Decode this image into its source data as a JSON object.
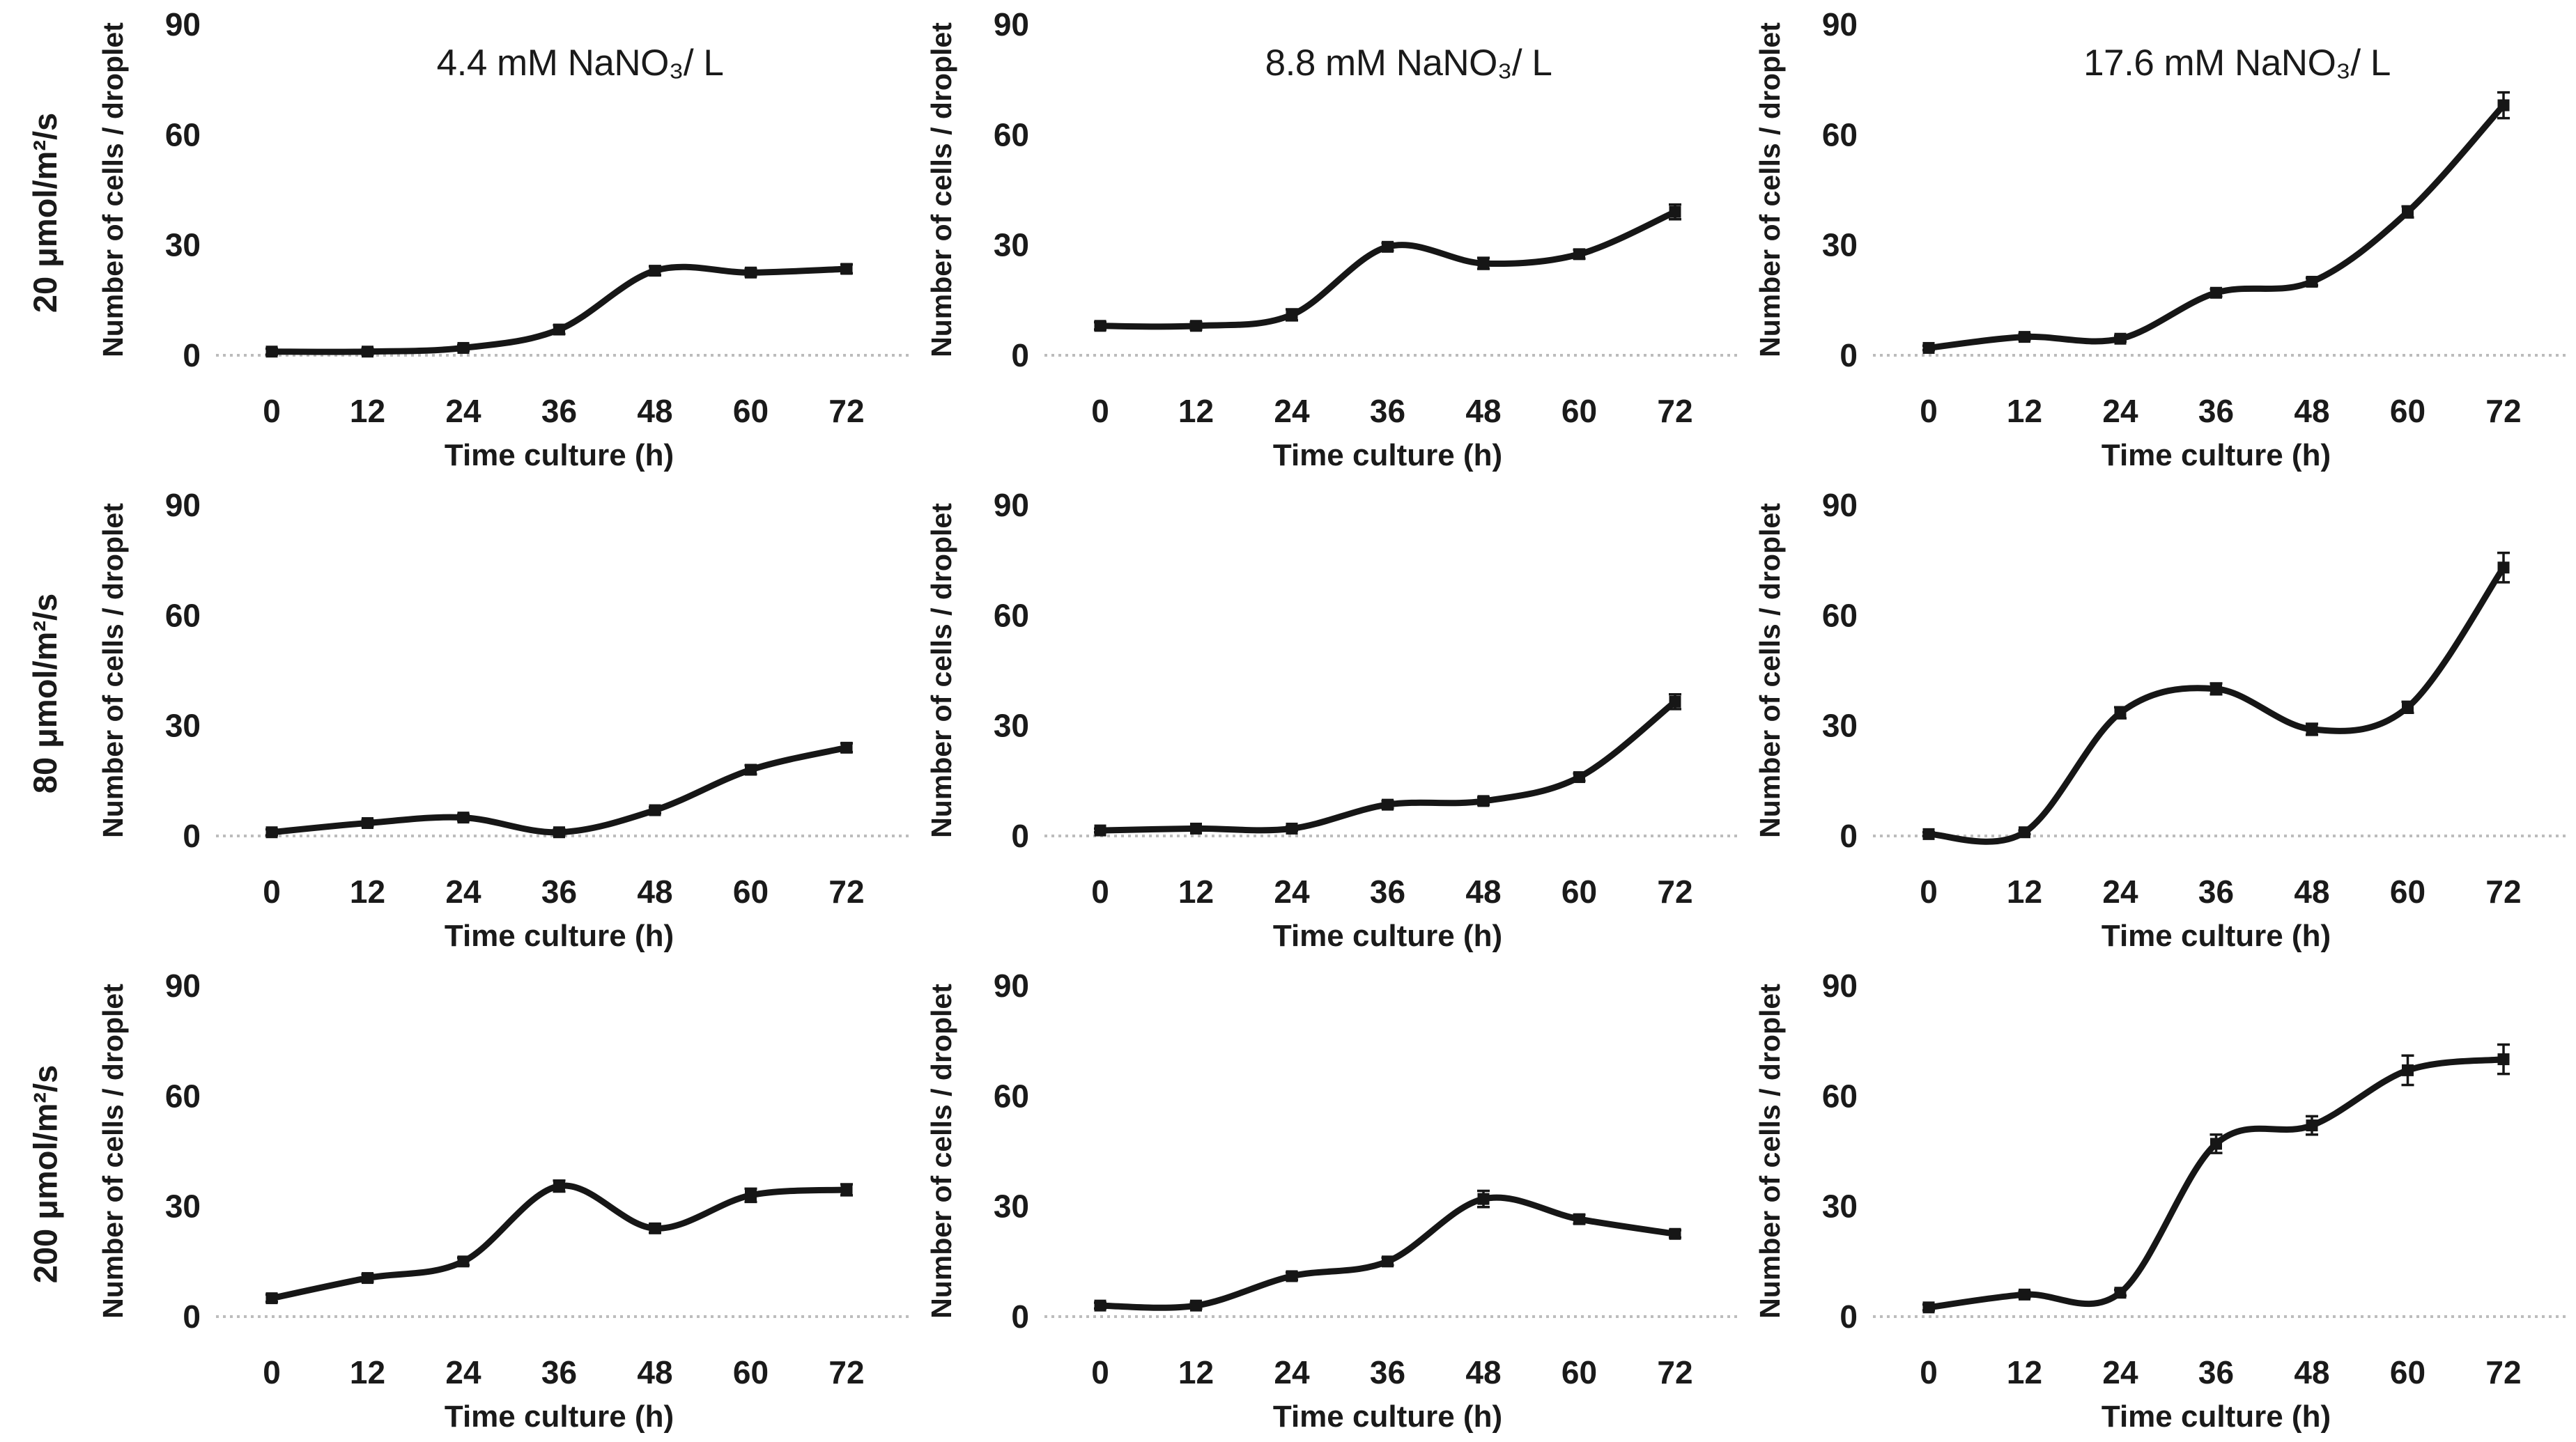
{
  "figure": {
    "background": "#ffffff",
    "text_color": "#1a1a1a",
    "line_color": "#161616",
    "baseline_color": "#bcbcbc",
    "row_labels": [
      "20 μmol/m²/s",
      "80 μmol/m²/s",
      "200 μmol/m²/s"
    ],
    "col_titles": [
      "4.4 mM NaNO₃/ L",
      "8.8 mM NaNO₃/ L",
      "17.6 mM NaNO₃/ L"
    ],
    "x_axis_label": "Time culture (h)",
    "y_axis_label": "Number of cells / droplet",
    "x_ticks": [
      0,
      12,
      24,
      36,
      48,
      60,
      72
    ],
    "y_ticks": [
      0,
      30,
      60,
      90
    ],
    "ylim": [
      0,
      90
    ],
    "grid": "off",
    "legend": "none",
    "marker": "square",
    "smoothed_lines": true,
    "error_bars": true
  },
  "chart_data": [
    {
      "type": "line",
      "grid_row": 1,
      "grid_col": 1,
      "row_label": "20 μmol/m²/s",
      "title": "4.4 mM NaNO₃/ L",
      "x": [
        0,
        12,
        24,
        36,
        48,
        60,
        72
      ],
      "values": [
        1,
        1,
        2,
        7,
        23,
        22.5,
        23.5
      ],
      "errors": [
        0.8,
        0.8,
        0.8,
        1.2,
        1.2,
        1,
        1.2
      ],
      "xlabel": "Time culture (h)",
      "ylabel": "Number of cells / droplet",
      "ylim": [
        0,
        90
      ],
      "y_ticks": [
        0,
        30,
        60,
        90
      ]
    },
    {
      "type": "line",
      "grid_row": 1,
      "grid_col": 2,
      "row_label": "20 μmol/m²/s",
      "title": "8.8 mM NaNO₃/ L",
      "x": [
        0,
        12,
        24,
        36,
        48,
        60,
        72
      ],
      "values": [
        8,
        8,
        11,
        29.5,
        25,
        27.5,
        39
      ],
      "errors": [
        1,
        1,
        1.5,
        1,
        1.5,
        1.2,
        2
      ],
      "xlabel": "Time culture (h)",
      "ylabel": "Number of cells / droplet",
      "ylim": [
        0,
        90
      ],
      "y_ticks": [
        0,
        30,
        60,
        90
      ]
    },
    {
      "type": "line",
      "grid_row": 1,
      "grid_col": 3,
      "row_label": "20 μmol/m²/s",
      "title": "17.6 mM NaNO₃/ L",
      "x": [
        0,
        12,
        24,
        36,
        48,
        60,
        72
      ],
      "values": [
        2,
        5,
        4.5,
        17,
        20,
        39,
        68
      ],
      "errors": [
        0.6,
        0.8,
        0.8,
        1,
        1,
        1.5,
        3.5
      ],
      "xlabel": "Time culture (h)",
      "ylabel": "Number of cells / droplet",
      "ylim": [
        0,
        90
      ],
      "y_ticks": [
        0,
        30,
        60,
        90
      ]
    },
    {
      "type": "line",
      "grid_row": 2,
      "grid_col": 1,
      "row_label": "80 μmol/m²/s",
      "title": "",
      "x": [
        0,
        12,
        24,
        36,
        48,
        60,
        72
      ],
      "values": [
        1,
        3.5,
        5,
        1,
        7,
        18,
        24
      ],
      "errors": [
        0.8,
        0.8,
        0.8,
        0.8,
        0.8,
        1.2,
        1.2
      ],
      "xlabel": "Time culture (h)",
      "ylabel": "Number of cells / droplet",
      "ylim": [
        0,
        90
      ],
      "y_ticks": [
        0,
        30,
        60,
        90
      ]
    },
    {
      "type": "line",
      "grid_row": 2,
      "grid_col": 2,
      "row_label": "80 μmol/m²/s",
      "title": "",
      "x": [
        0,
        12,
        24,
        36,
        48,
        60,
        72
      ],
      "values": [
        1.5,
        2,
        2,
        8.5,
        9.5,
        16,
        36.5
      ],
      "errors": [
        0.5,
        0.5,
        0.5,
        1,
        1,
        1,
        2
      ],
      "xlabel": "Time culture (h)",
      "ylabel": "Number of cells / droplet",
      "ylim": [
        0,
        90
      ],
      "y_ticks": [
        0,
        30,
        60,
        90
      ]
    },
    {
      "type": "line",
      "grid_row": 2,
      "grid_col": 3,
      "row_label": "80 μmol/m²/s",
      "title": "",
      "x": [
        0,
        12,
        24,
        36,
        48,
        60,
        72
      ],
      "values": [
        0.5,
        1,
        33.5,
        40,
        29,
        35,
        73
      ],
      "errors": [
        0.5,
        0.5,
        1.5,
        1.5,
        1.5,
        1.5,
        4
      ],
      "xlabel": "Time culture (h)",
      "ylabel": "Number of cells / droplet",
      "ylim": [
        0,
        90
      ],
      "y_ticks": [
        0,
        30,
        60,
        90
      ]
    },
    {
      "type": "line",
      "grid_row": 3,
      "grid_col": 1,
      "row_label": "200 μmol/m²/s",
      "title": "",
      "x": [
        0,
        12,
        24,
        36,
        48,
        60,
        72
      ],
      "values": [
        5,
        10.5,
        15,
        35.5,
        24,
        33,
        34.5
      ],
      "errors": [
        1,
        1,
        1,
        1.5,
        1.2,
        1.8,
        1.5
      ],
      "xlabel": "Time culture (h)",
      "ylabel": "Number of cells / droplet",
      "ylim": [
        0,
        90
      ],
      "y_ticks": [
        0,
        30,
        60,
        90
      ]
    },
    {
      "type": "line",
      "grid_row": 3,
      "grid_col": 2,
      "row_label": "200 μmol/m²/s",
      "title": "",
      "x": [
        0,
        12,
        24,
        36,
        48,
        60,
        72
      ],
      "values": [
        3,
        3,
        11,
        15,
        32,
        26.5,
        22.5
      ],
      "errors": [
        0.8,
        0.8,
        1,
        1,
        2.2,
        1.2,
        1
      ],
      "xlabel": "Time culture (h)",
      "ylabel": "Number of cells / droplet",
      "ylim": [
        0,
        90
      ],
      "y_ticks": [
        0,
        30,
        60,
        90
      ]
    },
    {
      "type": "line",
      "grid_row": 3,
      "grid_col": 3,
      "row_label": "200 μmol/m²/s",
      "title": "",
      "x": [
        0,
        12,
        24,
        36,
        48,
        60,
        72
      ],
      "values": [
        2.5,
        6,
        6.5,
        47,
        52,
        67,
        70
      ],
      "errors": [
        0.8,
        0.8,
        0.8,
        2.5,
        2.5,
        4,
        4
      ],
      "xlabel": "Time culture (h)",
      "ylabel": "Number of cells / droplet",
      "ylim": [
        0,
        90
      ],
      "y_ticks": [
        0,
        30,
        60,
        90
      ]
    }
  ]
}
